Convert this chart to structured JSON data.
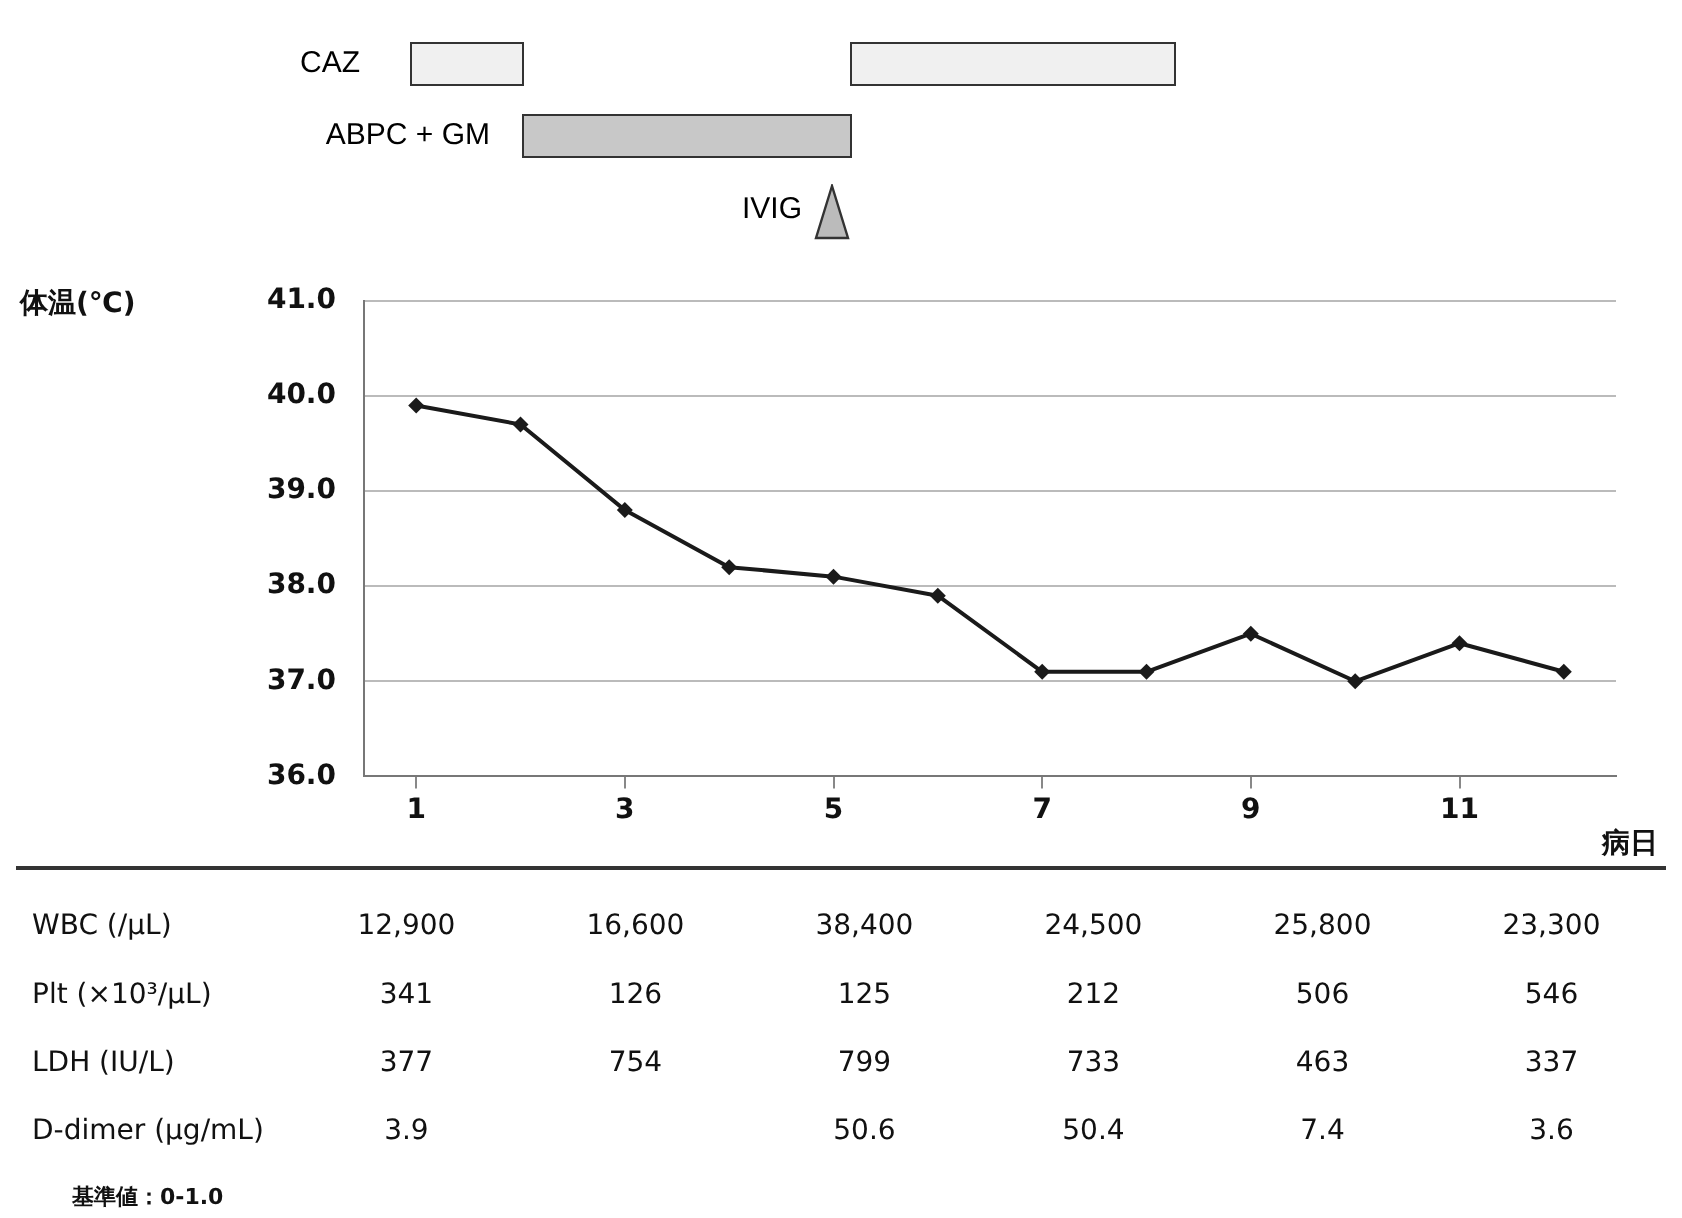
{
  "chart_data": [
    {
      "type": "line",
      "ylabel": "体温(℃)",
      "xlabel": "病日",
      "x": [
        1,
        2,
        3,
        4,
        5,
        6,
        7,
        8,
        9,
        10,
        11,
        12
      ],
      "values": [
        39.9,
        39.7,
        38.8,
        38.2,
        38.1,
        37.9,
        37.1,
        37.1,
        37.5,
        37.0,
        37.4,
        37.1
      ],
      "color": "#1a1a1a",
      "marker": "diamond",
      "line_style": "solid",
      "grid": "y",
      "xlim": [
        0.5,
        12.5
      ],
      "xticks": [
        1,
        3,
        5,
        7,
        9,
        11
      ],
      "ylim": [
        36,
        41
      ],
      "yticks": [
        {
          "value": 36,
          "label": "36.0"
        },
        {
          "value": 37,
          "label": "37.0"
        },
        {
          "value": 38,
          "label": "38.0"
        },
        {
          "value": 39,
          "label": "39.0"
        },
        {
          "value": 40,
          "label": "40.0"
        },
        {
          "value": 41,
          "label": "41.0"
        }
      ],
      "annotations": [
        "CAZ",
        "ABPC + GM",
        "IVIG"
      ]
    },
    {
      "type": "other",
      "y_categories": [
        "WBC (/μL)",
        "Plt (×10³/μL)",
        "LDH (IU/L)",
        "D-dimer (μg/mL)"
      ],
      "cell_labels": [
        [
          "12,900",
          "16,600",
          "38,400",
          "24,500",
          "25,800",
          "23,300"
        ],
        [
          "341",
          "126",
          "125",
          "212",
          "506",
          "546"
        ],
        [
          "377",
          "754",
          "799",
          "733",
          "463",
          "337"
        ],
        [
          "3.9",
          null,
          "50.6",
          "50.4",
          "7.4",
          "3.6"
        ]
      ],
      "annotations": [
        "基準値：0-1.0"
      ]
    }
  ]
}
